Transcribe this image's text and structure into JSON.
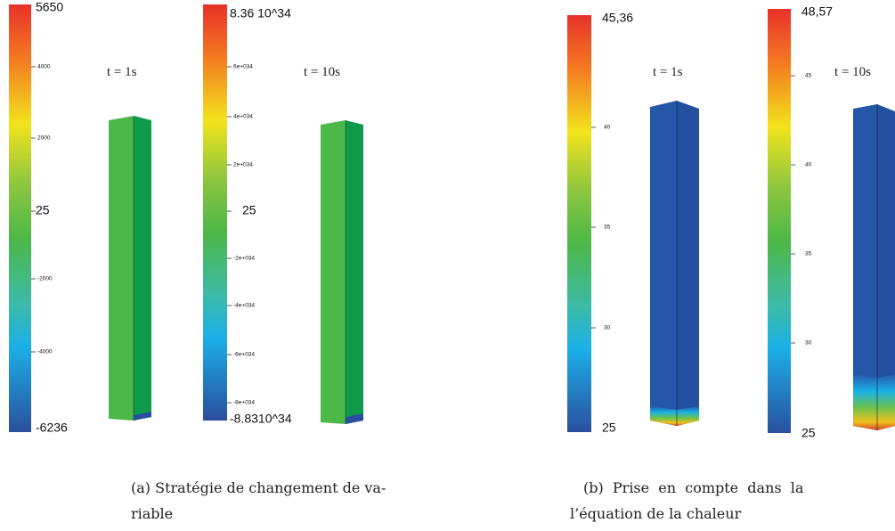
{
  "panels": [
    {
      "caption": [
        "(a) Stratégie de changement de va-",
        "riable"
      ],
      "views": [
        {
          "time": "t = 1s",
          "colorbar": {
            "max": "5650",
            "mid": "25",
            "min": "-6236",
            "ticks": [
              "4000",
              "2000",
              "-2000",
              "-4000"
            ]
          }
        },
        {
          "time": "t = 10s",
          "colorbar": {
            "max": "8.36 10^34",
            "mid": "25",
            "min": "-8.8310^34",
            "ticks": [
              "6e+034",
              "4e+034",
              "2e+034",
              "-2e+034",
              "-4e+034",
              "-6e+034",
              "-8e+034"
            ]
          }
        }
      ]
    },
    {
      "caption": [
        "(b)  Prise  en  compte  dans  la",
        "l’équation de la chaleur"
      ],
      "views": [
        {
          "time": "t = 1s",
          "colorbar": {
            "max": "45,36",
            "min": "25",
            "ticks": [
              "40",
              "35",
              "30"
            ]
          }
        },
        {
          "time": "t = 10s",
          "colorbar": {
            "max": "48,57",
            "min": "25",
            "ticks": [
              "45",
              "40",
              "35",
              "30"
            ]
          }
        }
      ]
    }
  ]
}
